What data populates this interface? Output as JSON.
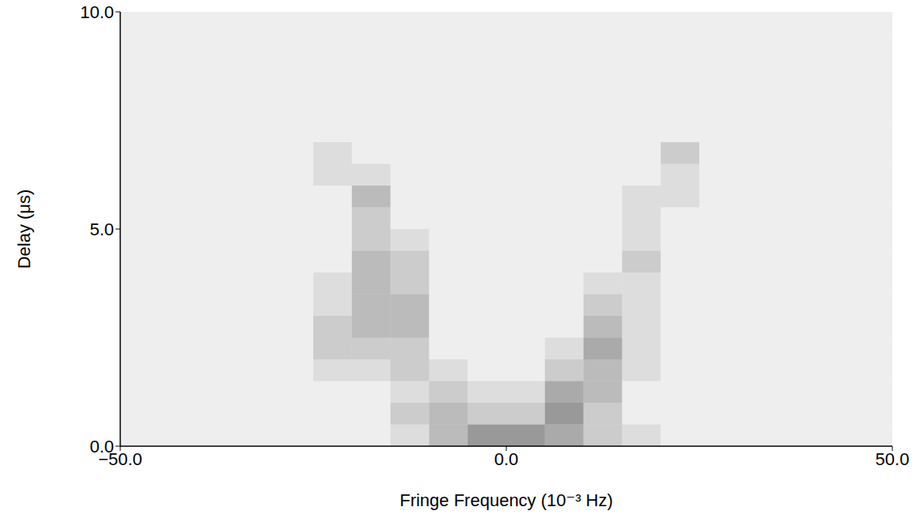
{
  "chart_data": {
    "type": "heatmap",
    "x_label": "Fringe Frequency (10⁻³ Hz)",
    "y_label": "Delay (μs)",
    "xlim": [
      -50,
      50
    ],
    "ylim": [
      0,
      10
    ],
    "xticks": [
      {
        "value": -50,
        "label": "−50.0"
      },
      {
        "value": 0,
        "label": "0.0"
      },
      {
        "value": 50,
        "label": "50.0"
      }
    ],
    "yticks": [
      {
        "value": 0,
        "label": "0.0"
      },
      {
        "value": 5,
        "label": "5.0"
      },
      {
        "value": 10,
        "label": "10.0"
      }
    ],
    "color": "#000000",
    "xbins": [
      -50,
      -45,
      -40,
      -35,
      -30,
      -25,
      -20,
      -15,
      -10,
      -5,
      0,
      5,
      10,
      15,
      20,
      25,
      30,
      35,
      40,
      45,
      50
    ],
    "ybins": [
      0,
      0.5,
      1,
      1.5,
      2,
      2.5,
      3,
      3.5,
      4,
      4.5,
      5,
      5.5,
      6,
      6.5,
      7,
      7.5,
      8,
      8.5,
      9,
      9.5,
      10
    ],
    "zlim": [
      0,
      9
    ],
    "cells": [
      [
        1,
        1,
        1,
        1,
        1,
        1,
        1,
        2,
        4,
        6,
        6,
        5,
        3,
        2,
        1,
        1,
        1,
        1,
        1,
        1
      ],
      [
        1,
        1,
        1,
        1,
        1,
        1,
        1,
        3,
        4,
        3,
        3,
        6,
        3,
        1,
        1,
        1,
        1,
        1,
        1,
        1
      ],
      [
        1,
        1,
        1,
        1,
        1,
        1,
        1,
        2,
        3,
        2,
        2,
        5,
        4,
        1,
        1,
        1,
        1,
        1,
        1,
        1
      ],
      [
        1,
        1,
        1,
        1,
        1,
        2,
        2,
        3,
        2,
        1,
        1,
        3,
        4,
        2,
        1,
        1,
        1,
        1,
        1,
        1
      ],
      [
        1,
        1,
        1,
        1,
        1,
        3,
        3,
        3,
        1,
        1,
        1,
        2,
        5,
        2,
        1,
        1,
        1,
        1,
        1,
        1
      ],
      [
        1,
        1,
        1,
        1,
        1,
        3,
        4,
        4,
        1,
        1,
        1,
        1,
        4,
        2,
        1,
        1,
        1,
        1,
        1,
        1
      ],
      [
        1,
        1,
        1,
        1,
        1,
        2,
        4,
        4,
        1,
        1,
        1,
        1,
        3,
        2,
        1,
        1,
        1,
        1,
        1,
        1
      ],
      [
        1,
        1,
        1,
        1,
        1,
        2,
        4,
        3,
        1,
        1,
        1,
        1,
        2,
        2,
        1,
        1,
        1,
        1,
        1,
        1
      ],
      [
        1,
        1,
        1,
        1,
        1,
        1,
        4,
        3,
        1,
        1,
        1,
        1,
        1,
        3,
        1,
        1,
        1,
        1,
        1,
        1
      ],
      [
        1,
        1,
        1,
        1,
        1,
        1,
        3,
        2,
        1,
        1,
        1,
        1,
        1,
        2,
        1,
        1,
        1,
        1,
        1,
        1
      ],
      [
        1,
        1,
        1,
        1,
        1,
        1,
        3,
        1,
        1,
        1,
        1,
        1,
        1,
        2,
        1,
        1,
        1,
        1,
        1,
        1
      ],
      [
        1,
        1,
        1,
        1,
        1,
        1,
        4,
        1,
        1,
        1,
        1,
        1,
        1,
        2,
        2,
        1,
        1,
        1,
        1,
        1
      ],
      [
        1,
        1,
        1,
        1,
        1,
        2,
        2,
        1,
        1,
        1,
        1,
        1,
        1,
        1,
        2,
        1,
        1,
        1,
        1,
        1
      ],
      [
        1,
        1,
        1,
        1,
        1,
        2,
        1,
        1,
        1,
        1,
        1,
        1,
        1,
        1,
        3,
        1,
        1,
        1,
        1,
        1
      ],
      [
        1,
        1,
        1,
        1,
        1,
        1,
        1,
        1,
        1,
        1,
        1,
        1,
        1,
        1,
        1,
        1,
        1,
        1,
        1,
        1
      ],
      [
        1,
        1,
        1,
        1,
        1,
        1,
        1,
        1,
        1,
        1,
        1,
        1,
        1,
        1,
        1,
        1,
        1,
        1,
        1,
        1
      ],
      [
        1,
        1,
        1,
        1,
        1,
        1,
        1,
        1,
        1,
        1,
        1,
        1,
        1,
        1,
        1,
        1,
        1,
        1,
        1,
        1
      ],
      [
        1,
        1,
        1,
        1,
        1,
        1,
        1,
        1,
        1,
        1,
        1,
        1,
        1,
        1,
        1,
        1,
        1,
        1,
        1,
        1
      ],
      [
        1,
        1,
        1,
        1,
        1,
        1,
        1,
        1,
        1,
        1,
        1,
        1,
        1,
        1,
        1,
        1,
        1,
        1,
        1,
        1
      ],
      [
        1,
        1,
        1,
        1,
        1,
        1,
        1,
        1,
        1,
        1,
        1,
        1,
        1,
        1,
        1,
        1,
        1,
        1,
        1,
        1
      ]
    ]
  }
}
